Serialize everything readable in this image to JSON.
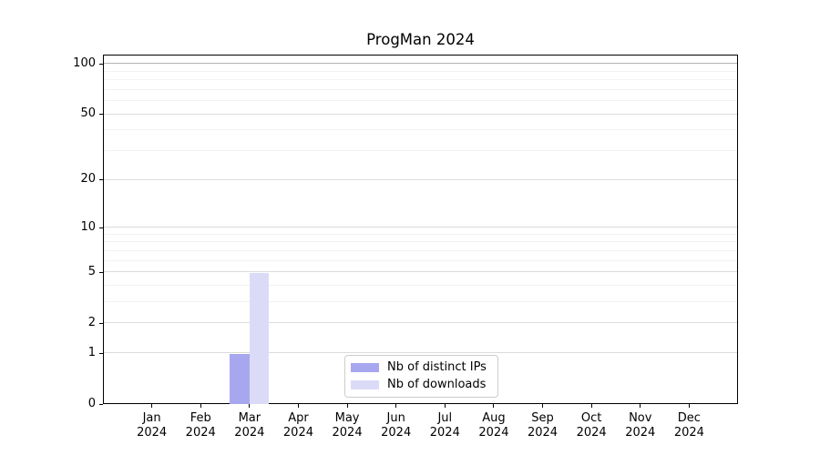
{
  "chart_data": {
    "type": "bar",
    "title": "ProgMan 2024",
    "categories": [
      "Jan",
      "Feb",
      "Mar",
      "Apr",
      "May",
      "Jun",
      "Jul",
      "Aug",
      "Sep",
      "Oct",
      "Nov",
      "Dec"
    ],
    "category_year": "2024",
    "series": [
      {
        "name": "Nb of distinct IPs",
        "color": "#a7a7f0",
        "values": [
          0,
          0,
          1,
          0,
          0,
          0,
          0,
          0,
          0,
          0,
          0,
          0
        ]
      },
      {
        "name": "Nb of downloads",
        "color": "#dbdbf8",
        "values": [
          0,
          0,
          5,
          0,
          0,
          0,
          0,
          0,
          0,
          0,
          0,
          0
        ]
      }
    ],
    "xlabel": "",
    "ylabel": "",
    "yscale": "log1p",
    "ylim": [
      0,
      113
    ],
    "yticks": [
      0,
      1,
      2,
      5,
      10,
      20,
      50,
      100
    ],
    "yticks_minor": [
      3,
      4,
      6,
      7,
      8,
      9,
      30,
      40,
      60,
      70,
      80,
      90
    ],
    "grid": "on",
    "legend_position": "lower center (inside plot)",
    "colors": {
      "grid_major": "#dcdcdc",
      "grid_minor": "#f2f2f2",
      "grid_emphasis": "#b3b3b3",
      "axis": "#000000",
      "background": "#ffffff",
      "legend_border": "#cccccc"
    }
  }
}
